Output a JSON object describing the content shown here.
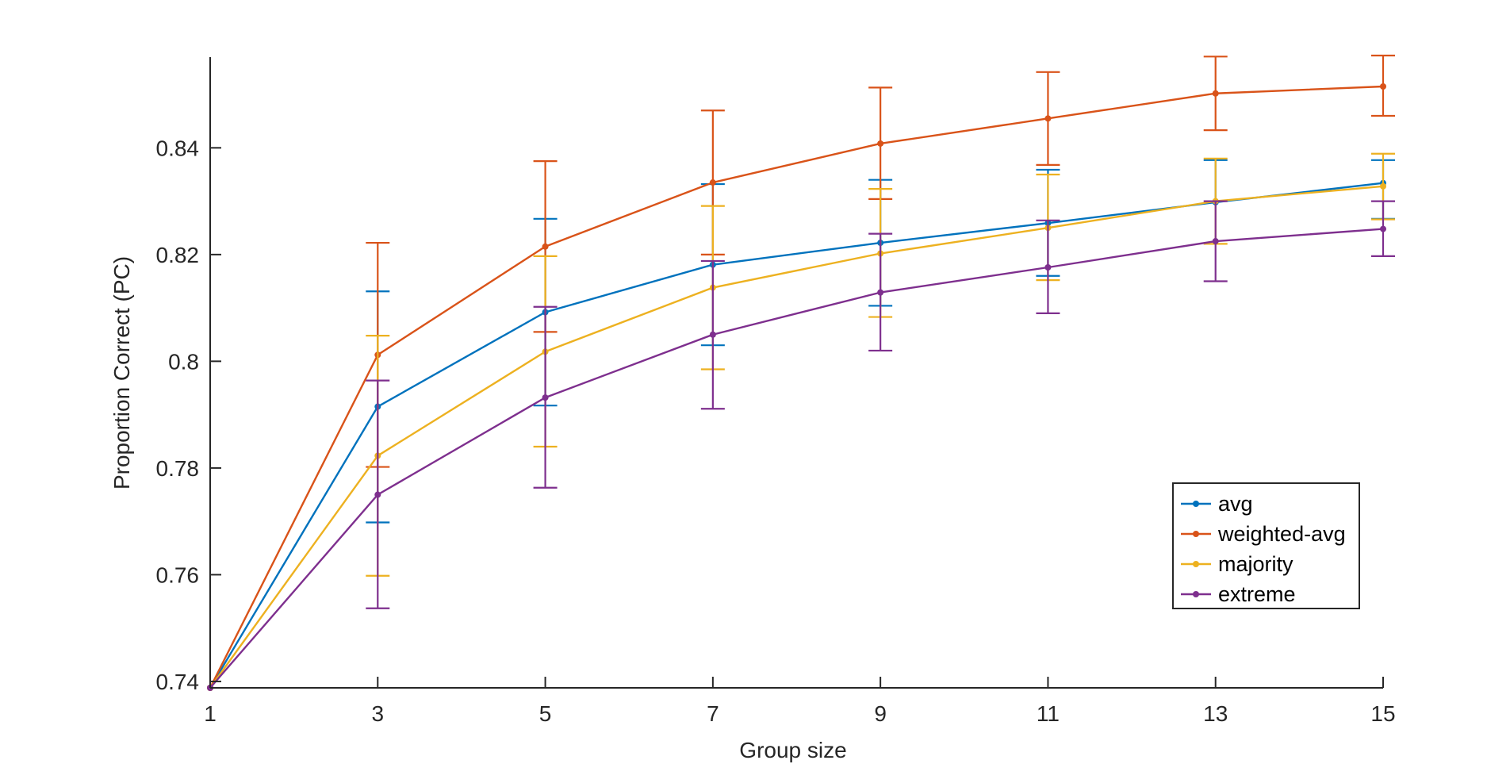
{
  "chart_data": {
    "type": "line",
    "title": "",
    "xlabel": "Group size",
    "ylabel": "Proportion Correct (PC)",
    "xlim": [
      1,
      15
    ],
    "ylim": [
      0.7388,
      0.857
    ],
    "xticks": [
      1,
      3,
      5,
      7,
      9,
      11,
      13,
      15
    ],
    "xtick_labels": [
      "1",
      "3",
      "5",
      "7",
      "9",
      "11",
      "13",
      "15"
    ],
    "yticks": [
      0.74,
      0.76,
      0.78,
      0.8,
      0.82,
      0.84
    ],
    "ytick_labels": [
      "0.74",
      "0.76",
      "0.78",
      "0.8",
      "0.82",
      "0.84"
    ],
    "grid": false,
    "legend_position": "bottom-right",
    "x": [
      1,
      3,
      5,
      7,
      9,
      11,
      13,
      15
    ],
    "series": [
      {
        "name": "avg",
        "color": "#0072BD",
        "values": [
          0.7388,
          0.7915,
          0.8092,
          0.8181,
          0.8222,
          0.8259,
          0.8298,
          0.8334
        ],
        "error_low": [
          null,
          0.7698,
          0.7917,
          0.803,
          0.8104,
          0.816,
          null,
          0.8267
        ],
        "error_high": [
          null,
          0.8131,
          0.8267,
          0.8332,
          0.834,
          0.8359,
          0.8377,
          0.8377
        ]
      },
      {
        "name": "weighted-avg",
        "color": "#D95319",
        "values": [
          0.7388,
          0.8012,
          0.8215,
          0.8335,
          0.8408,
          0.8455,
          0.8502,
          0.8515
        ],
        "error_low": [
          null,
          0.7802,
          0.8055,
          0.82,
          0.8304,
          0.8368,
          0.8433,
          0.846
        ],
        "error_high": [
          null,
          0.8222,
          0.8375,
          0.847,
          0.8513,
          0.8542,
          0.8571,
          0.8573
        ]
      },
      {
        "name": "majority",
        "color": "#EDB120",
        "values": [
          0.7388,
          0.7823,
          0.8018,
          0.8138,
          0.8202,
          0.825,
          0.83,
          0.8328
        ],
        "error_low": [
          null,
          0.7598,
          0.784,
          0.7985,
          0.8083,
          0.8152,
          0.822,
          0.8266
        ],
        "error_high": [
          null,
          0.8048,
          0.8197,
          0.8291,
          0.8323,
          0.835,
          0.838,
          0.8389
        ]
      },
      {
        "name": "extreme",
        "color": "#7E2F8E",
        "values": [
          0.7388,
          0.775,
          0.7932,
          0.805,
          0.8129,
          0.8176,
          0.8225,
          0.8248
        ],
        "error_low": [
          null,
          0.7537,
          0.7763,
          0.7911,
          0.802,
          0.809,
          0.815,
          0.8197
        ],
        "error_high": [
          null,
          0.7964,
          0.8102,
          0.8188,
          0.8239,
          0.8264,
          0.83,
          0.83
        ]
      }
    ],
    "legend": [
      "avg",
      "weighted-avg",
      "majority",
      "extreme"
    ]
  }
}
